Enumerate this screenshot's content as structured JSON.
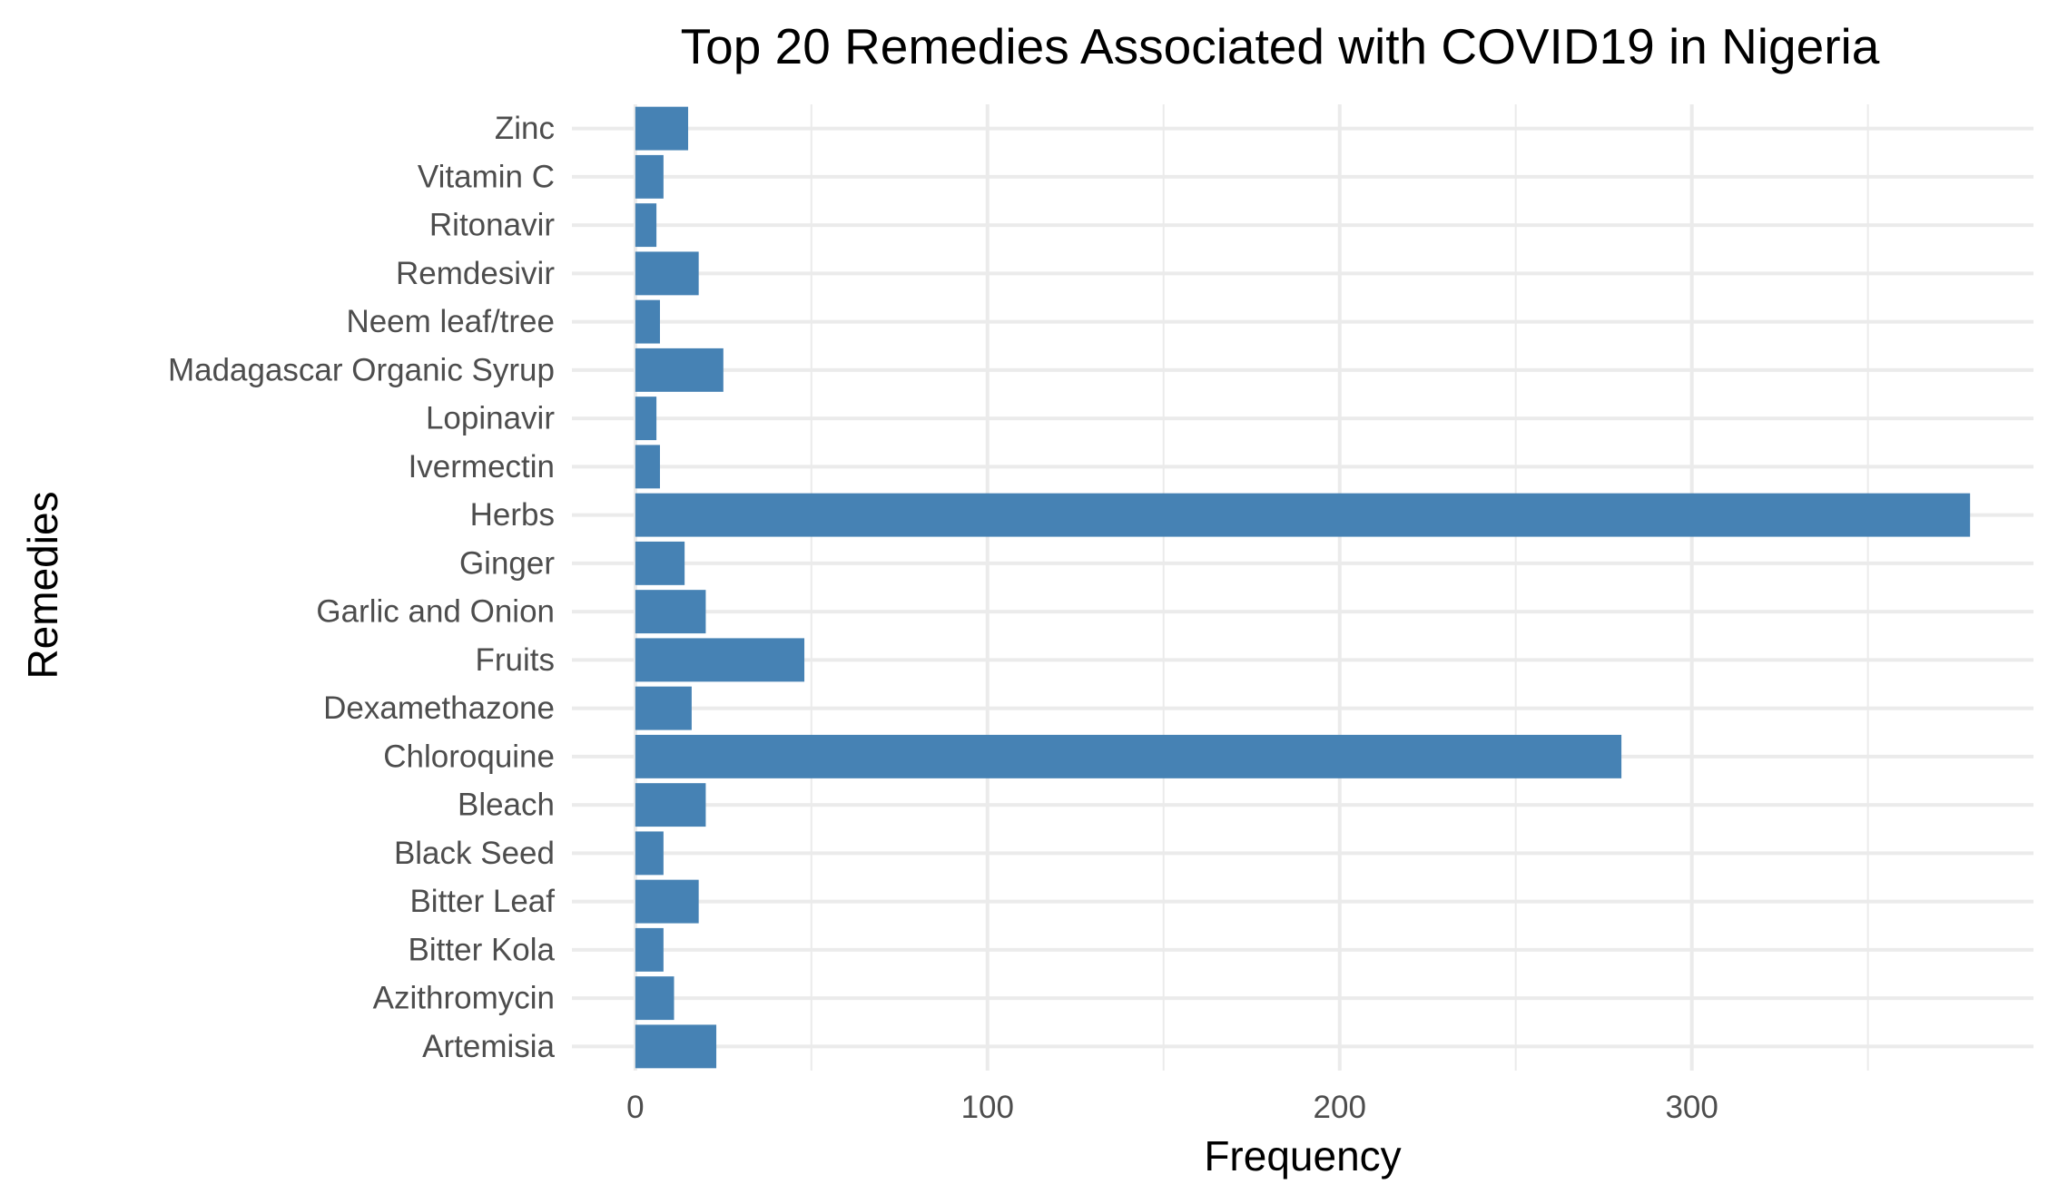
{
  "chart_data": {
    "type": "bar",
    "orientation": "horizontal",
    "title": "Top 20 Remedies Associated with COVID19 in Nigeria",
    "xlabel": "Frequency",
    "ylabel": "Remedies",
    "categories": [
      "Artemisia",
      "Azithromycin",
      "Bitter Kola",
      "Bitter Leaf",
      "Black Seed",
      "Bleach",
      "Chloroquine",
      "Dexamethazone",
      "Fruits",
      "Garlic and Onion",
      "Ginger",
      "Herbs",
      "Ivermectin",
      "Lopinavir",
      "Madagascar Organic Syrup",
      "Neem leaf/tree",
      "Remdesivir",
      "Ritonavir",
      "Vitamin C",
      "Zinc"
    ],
    "values": [
      23,
      11,
      8,
      18,
      8,
      20,
      280,
      16,
      48,
      20,
      14,
      379,
      7,
      6,
      25,
      7,
      18,
      6,
      8,
      15
    ],
    "xlim": [
      -18,
      397
    ],
    "xticks": [
      0,
      100,
      200,
      300
    ],
    "xtick_labels": [
      "0",
      "100",
      "200",
      "300"
    ],
    "grid": true,
    "bar_color": "#4682B4"
  }
}
